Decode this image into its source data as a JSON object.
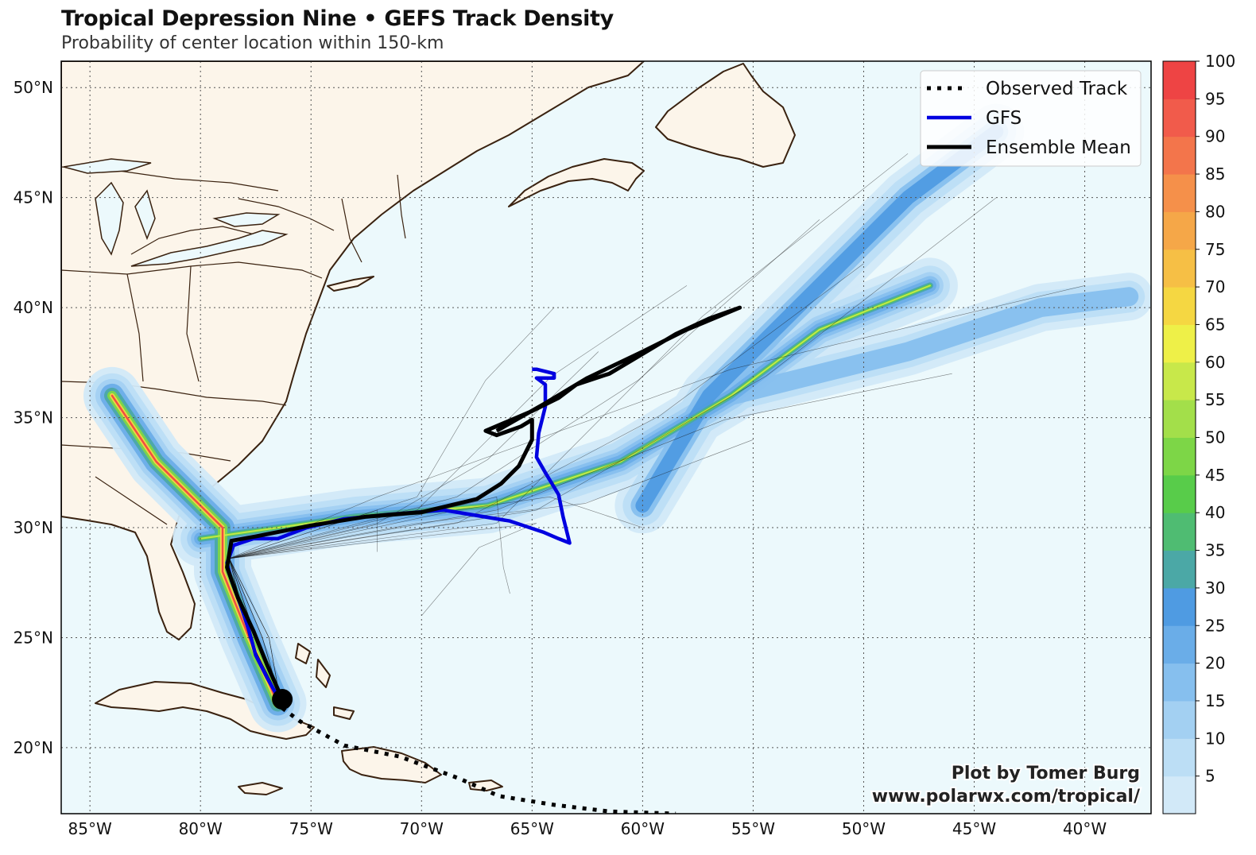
{
  "header": {
    "title": "Tropical Depression Nine • GEFS Track Density",
    "subtitle": "Probability of center location within 150-km"
  },
  "map": {
    "lon_range": [
      -86.3,
      -37.0
    ],
    "lat_range": [
      17.0,
      51.2
    ],
    "lon_ticks": [
      "85°W",
      "80°W",
      "75°W",
      "70°W",
      "65°W",
      "60°W",
      "55°W",
      "50°W",
      "45°W",
      "40°W"
    ],
    "lat_ticks": [
      "20°N",
      "25°N",
      "30°N",
      "35°N",
      "40°N",
      "45°N",
      "50°N"
    ],
    "ocean_color": "#ecf9fc",
    "land_color": "#fcf5ea",
    "coast_color": "#3a2210"
  },
  "legend": {
    "items": [
      {
        "label": "Observed Track",
        "style": "dotted",
        "color": "#000000"
      },
      {
        "label": "GFS",
        "style": "solid",
        "color": "#0000e0"
      },
      {
        "label": "Ensemble Mean",
        "style": "solid",
        "color": "#000000"
      }
    ]
  },
  "colorbar": {
    "ticks": [
      "5",
      "10",
      "15",
      "20",
      "25",
      "30",
      "35",
      "40",
      "45",
      "50",
      "55",
      "60",
      "65",
      "70",
      "75",
      "80",
      "85",
      "90",
      "95",
      "100"
    ],
    "colors": [
      "#d2e9f8",
      "#bcdef5",
      "#a3d0f2",
      "#86bfee",
      "#6aade8",
      "#4f9be2",
      "#4ba8a6",
      "#4fbc72",
      "#58cc4a",
      "#7dd647",
      "#a3df4a",
      "#c8e84a",
      "#eef048",
      "#f5d742",
      "#f6bf45",
      "#f5a748",
      "#f5904a",
      "#f3754b",
      "#f15b4b",
      "#ee4444"
    ]
  },
  "credit": {
    "line1": "Plot by Tomer Burg",
    "line2": "www.polarwx.com/tropical/"
  },
  "tracks": {
    "observed": [
      [
        -76.3,
        21.8
      ],
      [
        -75.5,
        21.2
      ],
      [
        -73.5,
        20.1
      ],
      [
        -71.0,
        19.6
      ],
      [
        -68.3,
        18.6
      ],
      [
        -66.5,
        17.8
      ],
      [
        -64.0,
        17.4
      ],
      [
        -61.5,
        17.1
      ],
      [
        -58.5,
        17.0
      ]
    ],
    "gfs": [
      [
        -76.5,
        22.3
      ],
      [
        -77.0,
        23.2
      ],
      [
        -77.5,
        24.2
      ],
      [
        -77.8,
        25.3
      ],
      [
        -78.2,
        26.5
      ],
      [
        -78.6,
        27.6
      ],
      [
        -78.8,
        28.4
      ],
      [
        -78.5,
        29.2
      ],
      [
        -77.6,
        29.5
      ],
      [
        -76.5,
        29.5
      ],
      [
        -75.2,
        30.0
      ],
      [
        -73.5,
        30.4
      ],
      [
        -71.5,
        30.6
      ],
      [
        -69.0,
        30.8
      ],
      [
        -66.0,
        30.3
      ],
      [
        -64.5,
        29.8
      ],
      [
        -63.8,
        29.5
      ],
      [
        -63.3,
        29.3
      ],
      [
        -63.6,
        30.5
      ],
      [
        -63.8,
        31.5
      ],
      [
        -64.4,
        32.5
      ],
      [
        -64.8,
        33.2
      ],
      [
        -64.7,
        34.3
      ],
      [
        -64.4,
        35.5
      ],
      [
        -64.4,
        36.5
      ],
      [
        -64.8,
        36.8
      ],
      [
        -64.0,
        36.8
      ],
      [
        -64.0,
        37.0
      ],
      [
        -64.8,
        37.2
      ],
      [
        -65.0,
        37.2
      ]
    ],
    "mean": [
      [
        -76.3,
        22.2
      ],
      [
        -77.0,
        23.8
      ],
      [
        -77.6,
        25.3
      ],
      [
        -78.3,
        26.8
      ],
      [
        -78.8,
        28.2
      ],
      [
        -78.6,
        29.4
      ],
      [
        -77.5,
        29.6
      ],
      [
        -75.0,
        30.1
      ],
      [
        -72.5,
        30.5
      ],
      [
        -70.0,
        30.7
      ],
      [
        -67.5,
        31.3
      ],
      [
        -66.4,
        32.0
      ],
      [
        -65.6,
        32.8
      ],
      [
        -65.0,
        34.0
      ],
      [
        -65.0,
        34.9
      ],
      [
        -65.5,
        34.6
      ],
      [
        -66.6,
        34.2
      ],
      [
        -67.1,
        34.4
      ],
      [
        -65.0,
        35.3
      ],
      [
        -63.8,
        35.9
      ],
      [
        -63.0,
        36.5
      ],
      [
        -61.5,
        37.0
      ],
      [
        -60.0,
        37.9
      ],
      [
        -58.5,
        38.8
      ],
      [
        -57.0,
        39.5
      ],
      [
        -55.6,
        40.0
      ],
      [
        -58.0,
        39.0
      ],
      [
        -60.0,
        38.0
      ],
      [
        -62.5,
        36.8
      ],
      [
        -64.5,
        35.6
      ],
      [
        -66.6,
        34.4
      ]
    ]
  }
}
